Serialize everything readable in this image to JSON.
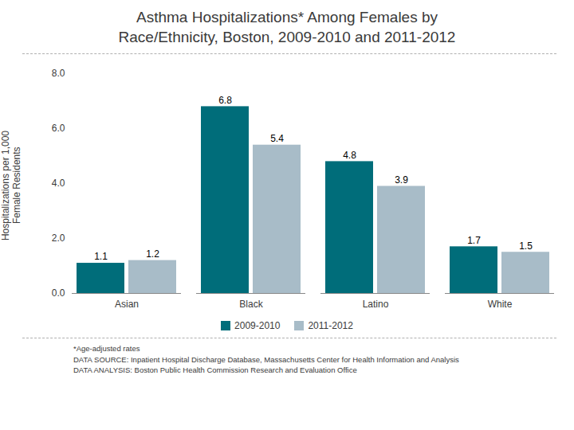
{
  "chart_data": {
    "type": "bar",
    "title": "Asthma Hospitalizations* Among Females by\nRace/Ethnicity, Boston, 2009-2010 and 2011-2012",
    "categories": [
      "Asian",
      "Black",
      "Latino",
      "White"
    ],
    "series": [
      {
        "name": "2009-2010",
        "color": "#006d7a",
        "values": [
          1.1,
          6.8,
          4.8,
          1.7
        ]
      },
      {
        "name": "2011-2012",
        "color": "#a8bcc8",
        "values": [
          1.2,
          5.4,
          3.9,
          1.5
        ]
      }
    ],
    "ylabel": "Hospitalizations per 1,000\nFemale Residents",
    "ylim": [
      0.0,
      8.0
    ],
    "yticks": [
      {
        "value": 0,
        "label": "0.0"
      },
      {
        "value": 2,
        "label": "2.0"
      },
      {
        "value": 4,
        "label": "4.0"
      },
      {
        "value": 6,
        "label": "6.0"
      },
      {
        "value": 8,
        "label": "8.0"
      }
    ],
    "data_labels": true,
    "grid": false,
    "legend": "bottom",
    "annotations": [
      "*Age-adjusted rates\nDATA SOURCE: Inpatient Hospital Discharge Database, Massachusetts Center for Health Information and Analysis\nDATA ANALYSIS: Boston Public Health Commission Research and Evaluation Office"
    ]
  }
}
